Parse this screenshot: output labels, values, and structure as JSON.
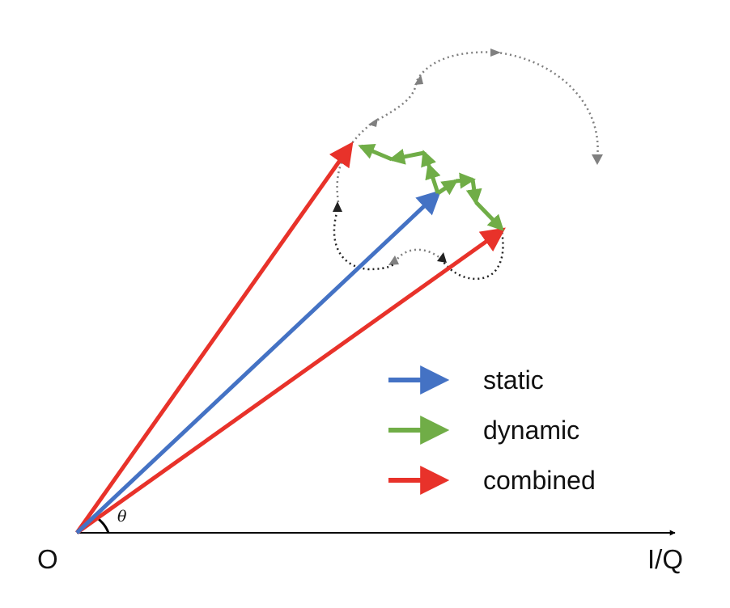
{
  "axis": {
    "origin_label": "O",
    "x_label": "I/Q",
    "angle_label": "θ"
  },
  "legend": [
    {
      "key": "static",
      "label": "static",
      "color": "#4472C4"
    },
    {
      "key": "dynamic",
      "label": "dynamic",
      "color": "#70AD47"
    },
    {
      "key": "combined",
      "label": "combined",
      "color": "#E8322A"
    }
  ],
  "colors": {
    "axis": "#000000",
    "trajectory_gray": "#808080",
    "trajectory_black": "#222222"
  }
}
